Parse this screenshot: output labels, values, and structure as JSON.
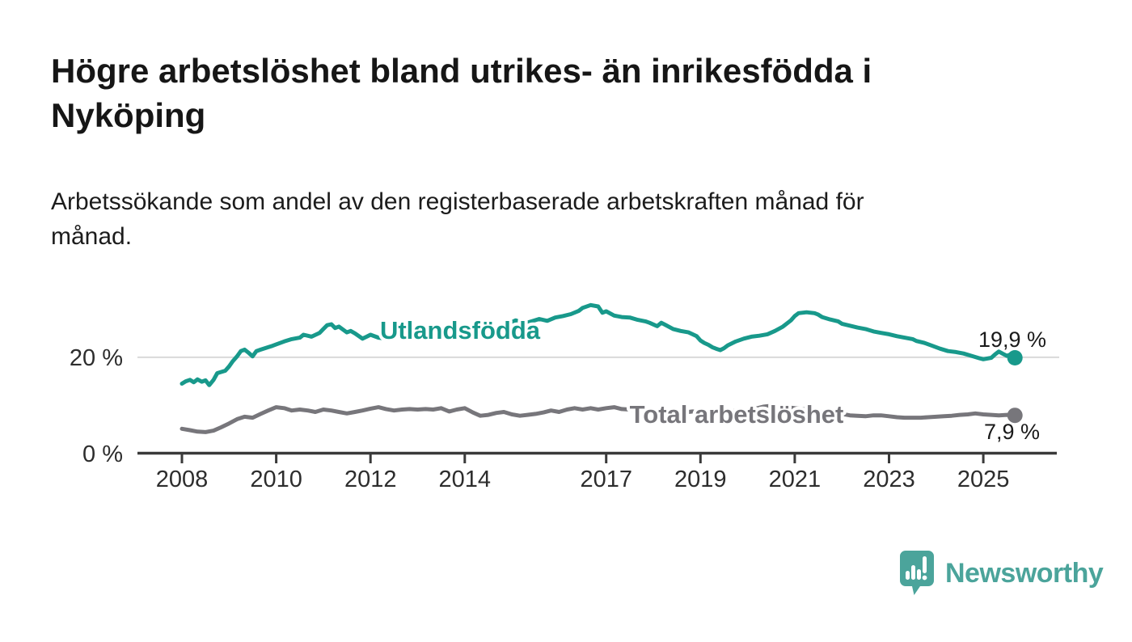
{
  "header": {
    "title": "Högre arbetslöshet bland utrikes- än inrikesfödda i Nyköping",
    "title_lines": [
      "Högre arbetslöshet bland utrikes- än inrikesfödda i",
      "Nyköping"
    ],
    "subtitle": "Arbetssökande som andel av den registerbaserade arbetskraften månad för månad.",
    "subtitle_lines": [
      "Arbetssökande som andel av den registerbaserade arbetskraften månad för",
      "månad."
    ]
  },
  "chart_data": {
    "type": "line",
    "title": "Högre arbetslöshet bland utrikes- än inrikesfödda i Nyköping",
    "xlabel": "",
    "ylabel": "",
    "x_axis": {
      "ticks": [
        2008,
        2010,
        2012,
        2014,
        2017,
        2019,
        2021,
        2023,
        2025
      ],
      "tick_labels": [
        "2008",
        "2010",
        "2012",
        "2014",
        "2017",
        "2019",
        "2021",
        "2023",
        "2025"
      ],
      "range": [
        2007.05,
        2026.55
      ]
    },
    "y_axis": {
      "ticks": [
        0,
        20
      ],
      "tick_labels": [
        "0 %",
        "20 %"
      ],
      "range": [
        0,
        33
      ],
      "gridline_at": 20
    },
    "legend_position": "inline-labels-on-lines",
    "series": [
      {
        "name": "Utlandsfödda",
        "color": "#18998b",
        "end_value": 19.9,
        "end_label": "19,9 %",
        "points": [
          [
            2008.0,
            14.5
          ],
          [
            2008.08,
            15.0
          ],
          [
            2008.17,
            15.3
          ],
          [
            2008.25,
            14.8
          ],
          [
            2008.33,
            15.4
          ],
          [
            2008.42,
            14.9
          ],
          [
            2008.5,
            15.2
          ],
          [
            2008.58,
            14.2
          ],
          [
            2008.67,
            15.3
          ],
          [
            2008.75,
            16.7
          ],
          [
            2008.92,
            17.2
          ],
          [
            2009.0,
            18.1
          ],
          [
            2009.08,
            19.2
          ],
          [
            2009.17,
            20.2
          ],
          [
            2009.25,
            21.3
          ],
          [
            2009.33,
            21.6
          ],
          [
            2009.42,
            20.9
          ],
          [
            2009.5,
            20.2
          ],
          [
            2009.58,
            21.3
          ],
          [
            2009.67,
            21.6
          ],
          [
            2009.83,
            22.1
          ],
          [
            2009.92,
            22.4
          ],
          [
            2010.0,
            22.7
          ],
          [
            2010.17,
            23.3
          ],
          [
            2010.33,
            23.8
          ],
          [
            2010.5,
            24.1
          ],
          [
            2010.58,
            24.7
          ],
          [
            2010.75,
            24.3
          ],
          [
            2010.92,
            25.1
          ],
          [
            2011.0,
            25.9
          ],
          [
            2011.08,
            26.7
          ],
          [
            2011.17,
            26.9
          ],
          [
            2011.25,
            26.1
          ],
          [
            2011.33,
            26.4
          ],
          [
            2011.5,
            25.2
          ],
          [
            2011.58,
            25.5
          ],
          [
            2011.67,
            25.0
          ],
          [
            2011.83,
            23.9
          ],
          [
            2011.92,
            24.3
          ],
          [
            2012.0,
            24.7
          ],
          [
            2012.17,
            24.1
          ],
          [
            2012.33,
            23.9
          ],
          [
            2012.5,
            24.3
          ],
          [
            2012.67,
            24.7
          ],
          [
            2012.83,
            24.3
          ],
          [
            2013.0,
            24.6
          ],
          [
            2013.17,
            25.0
          ],
          [
            2013.33,
            24.7
          ],
          [
            2013.5,
            25.0
          ],
          [
            2013.67,
            25.3
          ],
          [
            2013.83,
            25.0
          ],
          [
            2014.0,
            25.3
          ],
          [
            2014.17,
            26.0
          ],
          [
            2014.33,
            26.8
          ],
          [
            2014.42,
            26.4
          ],
          [
            2014.58,
            25.9
          ],
          [
            2014.75,
            26.4
          ],
          [
            2014.92,
            27.0
          ],
          [
            2015.08,
            27.7
          ],
          [
            2015.25,
            27.0
          ],
          [
            2015.42,
            27.5
          ],
          [
            2015.58,
            28.0
          ],
          [
            2015.75,
            27.6
          ],
          [
            2015.92,
            28.3
          ],
          [
            2016.08,
            28.6
          ],
          [
            2016.25,
            29.0
          ],
          [
            2016.42,
            29.7
          ],
          [
            2016.5,
            30.3
          ],
          [
            2016.67,
            30.9
          ],
          [
            2016.83,
            30.6
          ],
          [
            2016.92,
            29.3
          ],
          [
            2017.0,
            29.6
          ],
          [
            2017.17,
            28.7
          ],
          [
            2017.33,
            28.4
          ],
          [
            2017.5,
            28.3
          ],
          [
            2017.67,
            27.8
          ],
          [
            2017.83,
            27.5
          ],
          [
            2017.92,
            27.2
          ],
          [
            2018.08,
            26.5
          ],
          [
            2018.17,
            27.2
          ],
          [
            2018.25,
            26.8
          ],
          [
            2018.42,
            25.9
          ],
          [
            2018.58,
            25.5
          ],
          [
            2018.75,
            25.2
          ],
          [
            2018.92,
            24.4
          ],
          [
            2019.0,
            23.5
          ],
          [
            2019.08,
            23.0
          ],
          [
            2019.17,
            22.6
          ],
          [
            2019.25,
            22.1
          ],
          [
            2019.33,
            21.8
          ],
          [
            2019.42,
            21.5
          ],
          [
            2019.5,
            21.9
          ],
          [
            2019.58,
            22.5
          ],
          [
            2019.75,
            23.3
          ],
          [
            2019.92,
            23.9
          ],
          [
            2020.08,
            24.3
          ],
          [
            2020.25,
            24.5
          ],
          [
            2020.42,
            24.8
          ],
          [
            2020.58,
            25.5
          ],
          [
            2020.75,
            26.4
          ],
          [
            2020.92,
            27.7
          ],
          [
            2021.0,
            28.6
          ],
          [
            2021.08,
            29.2
          ],
          [
            2021.25,
            29.4
          ],
          [
            2021.42,
            29.2
          ],
          [
            2021.5,
            28.9
          ],
          [
            2021.58,
            28.4
          ],
          [
            2021.75,
            27.9
          ],
          [
            2021.92,
            27.5
          ],
          [
            2022.0,
            27.0
          ],
          [
            2022.17,
            26.6
          ],
          [
            2022.33,
            26.2
          ],
          [
            2022.5,
            25.9
          ],
          [
            2022.67,
            25.4
          ],
          [
            2022.83,
            25.1
          ],
          [
            2023.0,
            24.8
          ],
          [
            2023.17,
            24.4
          ],
          [
            2023.33,
            24.1
          ],
          [
            2023.5,
            23.8
          ],
          [
            2023.58,
            23.4
          ],
          [
            2023.75,
            23.0
          ],
          [
            2023.92,
            22.4
          ],
          [
            2024.08,
            21.8
          ],
          [
            2024.25,
            21.3
          ],
          [
            2024.42,
            21.1
          ],
          [
            2024.58,
            20.8
          ],
          [
            2024.75,
            20.3
          ],
          [
            2024.92,
            19.8
          ],
          [
            2025.0,
            19.6
          ],
          [
            2025.17,
            19.9
          ],
          [
            2025.25,
            20.6
          ],
          [
            2025.33,
            21.2
          ],
          [
            2025.42,
            20.7
          ],
          [
            2025.5,
            20.3
          ],
          [
            2025.58,
            20.6
          ],
          [
            2025.67,
            19.9
          ]
        ]
      },
      {
        "name": "Total arbetslöshet",
        "color": "#77767b",
        "end_value": 7.9,
        "end_label": "7,9 %",
        "points": [
          [
            2008.0,
            5.1
          ],
          [
            2008.17,
            4.8
          ],
          [
            2008.33,
            4.5
          ],
          [
            2008.5,
            4.4
          ],
          [
            2008.67,
            4.7
          ],
          [
            2008.83,
            5.4
          ],
          [
            2009.0,
            6.2
          ],
          [
            2009.17,
            7.1
          ],
          [
            2009.33,
            7.6
          ],
          [
            2009.5,
            7.4
          ],
          [
            2009.67,
            8.2
          ],
          [
            2009.83,
            8.9
          ],
          [
            2010.0,
            9.6
          ],
          [
            2010.17,
            9.4
          ],
          [
            2010.33,
            8.9
          ],
          [
            2010.5,
            9.1
          ],
          [
            2010.67,
            8.9
          ],
          [
            2010.83,
            8.6
          ],
          [
            2011.0,
            9.1
          ],
          [
            2011.17,
            8.9
          ],
          [
            2011.33,
            8.6
          ],
          [
            2011.5,
            8.3
          ],
          [
            2011.67,
            8.6
          ],
          [
            2011.83,
            8.9
          ],
          [
            2012.0,
            9.3
          ],
          [
            2012.17,
            9.6
          ],
          [
            2012.33,
            9.2
          ],
          [
            2012.5,
            8.9
          ],
          [
            2012.67,
            9.1
          ],
          [
            2012.83,
            9.2
          ],
          [
            2013.0,
            9.1
          ],
          [
            2013.17,
            9.2
          ],
          [
            2013.33,
            9.1
          ],
          [
            2013.5,
            9.4
          ],
          [
            2013.67,
            8.7
          ],
          [
            2013.83,
            9.1
          ],
          [
            2014.0,
            9.4
          ],
          [
            2014.17,
            8.5
          ],
          [
            2014.33,
            7.8
          ],
          [
            2014.5,
            8.0
          ],
          [
            2014.67,
            8.4
          ],
          [
            2014.83,
            8.6
          ],
          [
            2015.0,
            8.1
          ],
          [
            2015.17,
            7.8
          ],
          [
            2015.33,
            8.0
          ],
          [
            2015.5,
            8.2
          ],
          [
            2015.67,
            8.5
          ],
          [
            2015.83,
            8.9
          ],
          [
            2016.0,
            8.6
          ],
          [
            2016.17,
            9.1
          ],
          [
            2016.33,
            9.4
          ],
          [
            2016.5,
            9.1
          ],
          [
            2016.67,
            9.4
          ],
          [
            2016.83,
            9.1
          ],
          [
            2017.0,
            9.4
          ],
          [
            2017.17,
            9.6
          ],
          [
            2017.33,
            9.2
          ],
          [
            2017.5,
            9.1
          ],
          [
            2017.67,
            9.0
          ],
          [
            2017.83,
            9.2
          ],
          [
            2018.0,
            8.9
          ],
          [
            2018.17,
            8.7
          ],
          [
            2018.33,
            8.8
          ],
          [
            2018.5,
            8.6
          ],
          [
            2018.67,
            8.5
          ],
          [
            2018.83,
            8.7
          ],
          [
            2019.0,
            8.6
          ],
          [
            2019.17,
            8.4
          ],
          [
            2019.33,
            8.5
          ],
          [
            2019.5,
            8.6
          ],
          [
            2019.67,
            8.8
          ],
          [
            2019.83,
            8.7
          ],
          [
            2020.0,
            8.9
          ],
          [
            2020.17,
            9.3
          ],
          [
            2020.33,
            9.7
          ],
          [
            2020.5,
            9.9
          ],
          [
            2020.67,
            9.8
          ],
          [
            2020.83,
            9.6
          ],
          [
            2021.0,
            9.4
          ],
          [
            2021.17,
            9.2
          ],
          [
            2021.33,
            9.0
          ],
          [
            2021.5,
            8.8
          ],
          [
            2021.67,
            8.6
          ],
          [
            2021.83,
            8.4
          ],
          [
            2022.0,
            8.2
          ],
          [
            2022.17,
            7.9
          ],
          [
            2022.33,
            7.8
          ],
          [
            2022.5,
            7.7
          ],
          [
            2022.67,
            7.9
          ],
          [
            2022.83,
            7.9
          ],
          [
            2023.0,
            7.7
          ],
          [
            2023.17,
            7.5
          ],
          [
            2023.33,
            7.4
          ],
          [
            2023.5,
            7.4
          ],
          [
            2023.67,
            7.4
          ],
          [
            2023.83,
            7.5
          ],
          [
            2024.0,
            7.6
          ],
          [
            2024.17,
            7.7
          ],
          [
            2024.33,
            7.8
          ],
          [
            2024.5,
            8.0
          ],
          [
            2024.67,
            8.1
          ],
          [
            2024.83,
            8.3
          ],
          [
            2025.0,
            8.1
          ],
          [
            2025.17,
            8.0
          ],
          [
            2025.33,
            7.9
          ],
          [
            2025.5,
            8.0
          ],
          [
            2025.67,
            7.9
          ]
        ]
      }
    ],
    "colors": {
      "grid": "#d9d9d9",
      "axis": "#3a3a3a",
      "teal": "#18998b",
      "gray": "#77767b"
    }
  },
  "footer": {
    "brand": "Newsworthy",
    "logo_icon": "speech-bubble-bar-chart-icon",
    "brand_color": "#4ba49b"
  }
}
